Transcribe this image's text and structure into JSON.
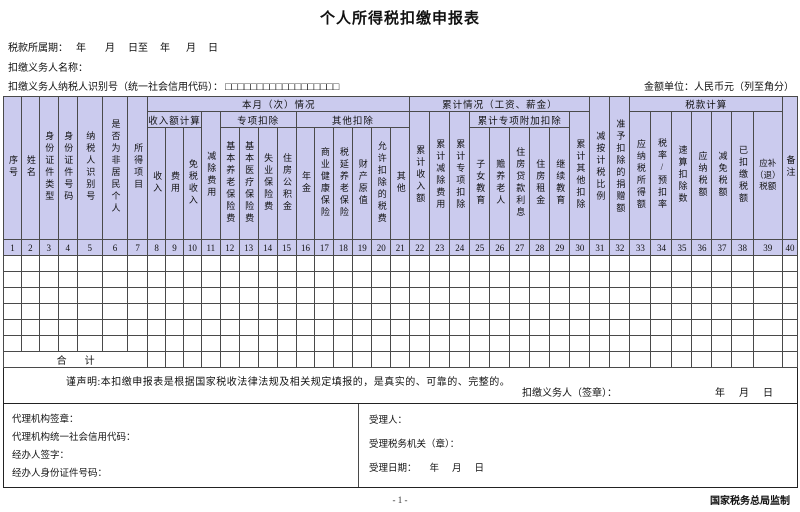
{
  "header": {
    "title": "个人所得税扣缴申报表",
    "period_label": "税款所属期：",
    "period_tokens": [
      "年",
      "月",
      "日至",
      "年",
      "月",
      "日"
    ],
    "withholder_name_label": "扣缴义务人名称：",
    "withholder_id_label": "扣缴义务人纳税人识别号（统一社会信用代码）：",
    "id_boxes": "□□□□□□□□□□□□□□□□□□",
    "amount_unit": "金额单位：人民币元（列至角分）"
  },
  "table": {
    "groups": {
      "current_month": "本月（次）情况",
      "income_calc": "收入额计算",
      "special_deduction": "专项扣除",
      "other_deduction": "其他扣除",
      "cumulative": "累计情况（工资、薪金）",
      "cumulative_special_additional": "累计专项附加扣除",
      "tax_calc": "税款计算"
    },
    "columns": [
      {
        "no": "1",
        "label": "序号"
      },
      {
        "no": "2",
        "label": "姓名"
      },
      {
        "no": "3",
        "label": "身份证件类型"
      },
      {
        "no": "4",
        "label": "身份证件号码"
      },
      {
        "no": "5",
        "label": "纳税人识别号"
      },
      {
        "no": "6",
        "label": "是否为非居民个人"
      },
      {
        "no": "7",
        "label": "所得项目"
      },
      {
        "no": "8",
        "label": "收入"
      },
      {
        "no": "9",
        "label": "费用"
      },
      {
        "no": "10",
        "label": "免税收入"
      },
      {
        "no": "11",
        "label": "减除费用"
      },
      {
        "no": "12",
        "label": "基本养老保险费"
      },
      {
        "no": "13",
        "label": "基本医疗保险费"
      },
      {
        "no": "14",
        "label": "失业保险费"
      },
      {
        "no": "15",
        "label": "住房公积金"
      },
      {
        "no": "16",
        "label": "年金"
      },
      {
        "no": "17",
        "label": "商业健康保险"
      },
      {
        "no": "18",
        "label": "税延养老保险"
      },
      {
        "no": "19",
        "label": "财产原值"
      },
      {
        "no": "20",
        "label": "允许扣除的税费"
      },
      {
        "no": "21",
        "label": "其他"
      },
      {
        "no": "22",
        "label": "累计收入额"
      },
      {
        "no": "23",
        "label": "累计减除费用"
      },
      {
        "no": "24",
        "label": "累计专项扣除"
      },
      {
        "no": "25",
        "label": "子女教育"
      },
      {
        "no": "26",
        "label": "赡养老人"
      },
      {
        "no": "27",
        "label": "住房贷款利息"
      },
      {
        "no": "28",
        "label": "住房租金"
      },
      {
        "no": "29",
        "label": "继续教育"
      },
      {
        "no": "30",
        "label": "累计其他扣除"
      },
      {
        "no": "31",
        "label": "减按计税比例"
      },
      {
        "no": "32",
        "label": "准予扣除的捐赠额"
      },
      {
        "no": "33",
        "label": "应纳税所得额"
      },
      {
        "no": "34",
        "label": "税率/预扣率"
      },
      {
        "no": "35",
        "label": "速算扣除数"
      },
      {
        "no": "36",
        "label": "应纳税额"
      },
      {
        "no": "37",
        "label": "减免税额"
      },
      {
        "no": "38",
        "label": "已扣缴税额"
      },
      {
        "no": "39",
        "label": "应补（退）税额"
      },
      {
        "no": "40",
        "label": "备注"
      }
    ],
    "empty_row_count": 6,
    "total_label": "合计"
  },
  "declaration": {
    "text": "谨声明:本扣缴申报表是根据国家税收法律法规及相关规定填报的，是真实的、可靠的、完整的。",
    "signer_label": "扣缴义务人（签章）：",
    "date_tokens": [
      "年",
      "月",
      "日"
    ]
  },
  "bottom": {
    "left_lines": [
      "代理机构签章：",
      "代理机构统一社会信用代码：",
      "经办人签字：",
      "经办人身份证件号码："
    ],
    "right": {
      "acceptor_label": "受理人：",
      "tax_authority_label": "受理税务机关（章）：",
      "accept_date_label": "受理日期：",
      "date_tokens": [
        "年",
        "月",
        "日"
      ]
    }
  },
  "footer": {
    "producer": "国家税务总局监制",
    "page_number": "- 1 -"
  },
  "colors": {
    "header_bg": "#cbcbee",
    "grid": "#4a4a4a"
  }
}
